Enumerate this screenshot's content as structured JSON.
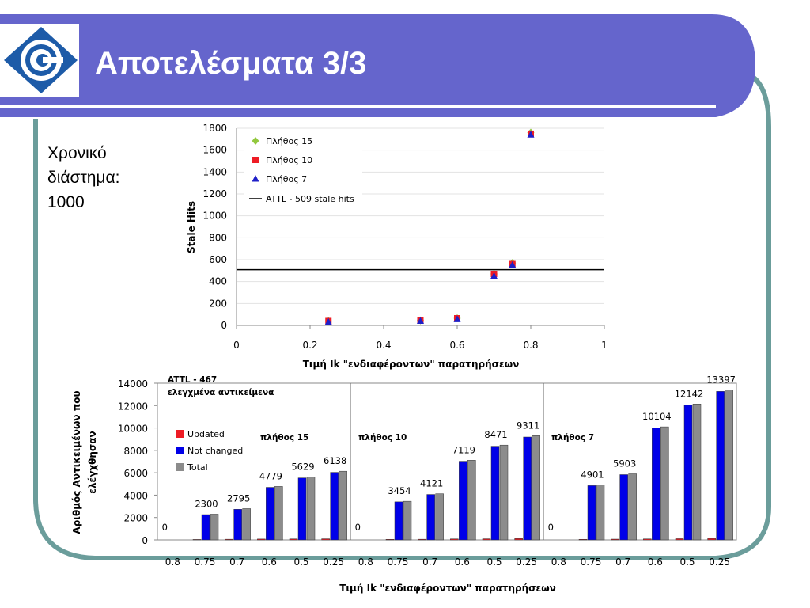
{
  "slide": {
    "title": "Αποτελέσματα 3/3",
    "side_text": [
      "Χρονικό",
      "διάστημα:",
      "1000"
    ],
    "colors": {
      "banner": "#6565CC",
      "frame": "#6B9D9B",
      "logo_blue": "#1D5BA8"
    }
  },
  "chart_data": [
    {
      "type": "scatter",
      "xlabel": "Τιμή Ik \"ενδιαφέροντων\" παρατηρήσεων",
      "ylabel": "Stale Hits",
      "xlim": [
        0,
        1
      ],
      "ylim": [
        0,
        1800
      ],
      "xticks": [
        "0",
        "0.2",
        "0.4",
        "0.6",
        "0.8",
        "1"
      ],
      "yticks": [
        "0",
        "200",
        "400",
        "600",
        "800",
        "1000",
        "1200",
        "1400",
        "1600",
        "1800"
      ],
      "grid": true,
      "legend_position": "top-left",
      "series": [
        {
          "name": "Πλήθος 15",
          "marker": "diamond",
          "color": "#92C83E",
          "points": [
            [
              0.25,
              40
            ],
            [
              0.5,
              45
            ],
            [
              0.6,
              65
            ],
            [
              0.7,
              470
            ],
            [
              0.75,
              570
            ],
            [
              0.8,
              1760
            ]
          ]
        },
        {
          "name": "Πλήθος 10",
          "marker": "square",
          "color": "#EE1C25",
          "points": [
            [
              0.25,
              40
            ],
            [
              0.5,
              45
            ],
            [
              0.6,
              65
            ],
            [
              0.7,
              470
            ],
            [
              0.75,
              560
            ],
            [
              0.8,
              1750
            ]
          ]
        },
        {
          "name": "Πλήθος 7",
          "marker": "triangle",
          "color": "#1F1FC8",
          "points": [
            [
              0.25,
              30
            ],
            [
              0.5,
              40
            ],
            [
              0.6,
              55
            ],
            [
              0.7,
              450
            ],
            [
              0.75,
              550
            ],
            [
              0.8,
              1740
            ]
          ]
        }
      ],
      "reference_line": {
        "name": "ATTL - 509 stale hits",
        "y": 509,
        "color": "#000000"
      }
    },
    {
      "type": "bar",
      "xlabel": "Τιμή Ik \"ενδιαφέροντων\" παρατηρήσεων",
      "ylabel": [
        "Αριθμός Αντικειμένων που",
        "ελέγχθησαν"
      ],
      "ylim": [
        0,
        14000
      ],
      "yticks": [
        "0",
        "2000",
        "4000",
        "6000",
        "8000",
        "10000",
        "12000",
        "14000"
      ],
      "grid": false,
      "legend_position": "left",
      "annotation": [
        "ATTL - 467",
        "ελεγχμένα αντικείμενα"
      ],
      "series": [
        {
          "name": "Updated",
          "color": "#EE1C25"
        },
        {
          "name": "Not changed",
          "color": "#0000E8"
        },
        {
          "name": "Total",
          "color": "#8C8C8C"
        }
      ],
      "groups": [
        {
          "name": "πλήθος 15",
          "categories": [
            "0.8",
            "0.75",
            "0.7",
            "0.6",
            "0.5",
            "0.25"
          ],
          "updated": [
            0,
            40,
            60,
            80,
            90,
            100
          ],
          "not_changed": [
            0,
            2260,
            2735,
            4699,
            5539,
            6038
          ],
          "total": [
            0,
            2300,
            2795,
            4779,
            5629,
            6138
          ],
          "labels": [
            "0",
            "2300",
            "2795",
            "4779",
            "5629",
            "6138"
          ]
        },
        {
          "name": "πλήθος 10",
          "categories": [
            "0.8",
            "0.75",
            "0.7",
            "0.6",
            "0.5",
            "0.25"
          ],
          "updated": [
            0,
            50,
            60,
            90,
            100,
            120
          ],
          "not_changed": [
            0,
            3404,
            4061,
            7029,
            8371,
            9191
          ],
          "total": [
            0,
            3454,
            4121,
            7119,
            8471,
            9311
          ],
          "labels": [
            "0",
            "3454",
            "4121",
            "7119",
            "8471",
            "9311"
          ]
        },
        {
          "name": "πλήθος 7",
          "categories": [
            "0.8",
            "0.75",
            "0.7",
            "0.6",
            "0.5",
            "0.25"
          ],
          "updated": [
            0,
            50,
            70,
            90,
            110,
            130
          ],
          "not_changed": [
            0,
            4851,
            5833,
            10014,
            12032,
            13267
          ],
          "total": [
            0,
            4901,
            5903,
            10104,
            12142,
            13397
          ],
          "labels": [
            "0",
            "4901",
            "5903",
            "10104",
            "12142",
            "13397"
          ]
        }
      ]
    }
  ]
}
